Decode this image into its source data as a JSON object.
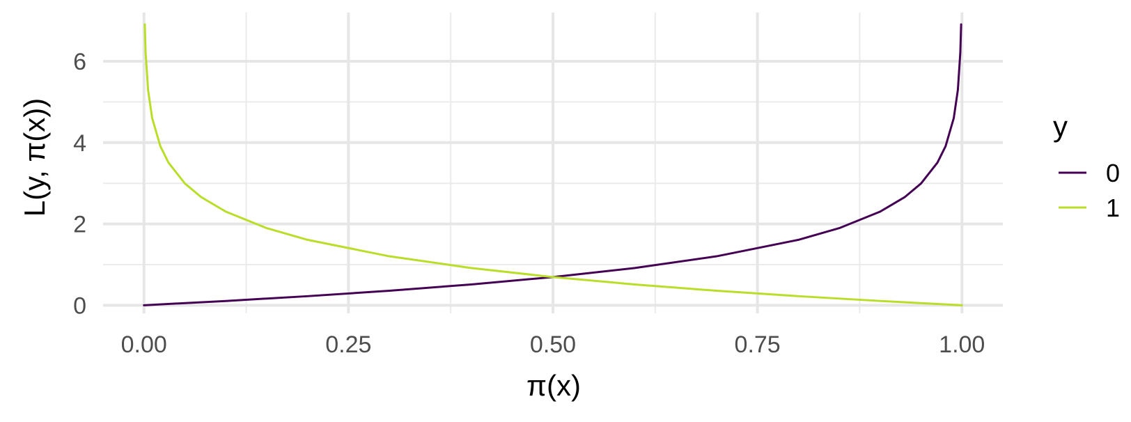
{
  "chart_data": {
    "type": "line",
    "title": "",
    "xlabel": "π(x)",
    "ylabel": "L(y, π(x))",
    "xlim": [
      -0.05,
      1.05
    ],
    "ylim": [
      -0.2,
      7.2
    ],
    "x_ticks": [
      0,
      0.25,
      0.5,
      0.75,
      1
    ],
    "x_tick_labels": [
      "0.00",
      "0.25",
      "0.50",
      "0.75",
      "1.00"
    ],
    "y_ticks": [
      0,
      2,
      4,
      6
    ],
    "y_tick_labels": [
      "0",
      "2",
      "4",
      "6"
    ],
    "grid": true,
    "legend": {
      "title": "y",
      "placement": "right"
    },
    "series": [
      {
        "name": "0",
        "color": "#440154",
        "x": [
          0,
          0.1,
          0.2,
          0.3,
          0.4,
          0.5,
          0.6,
          0.7,
          0.8,
          0.85,
          0.9,
          0.93,
          0.95,
          0.97,
          0.98,
          0.99,
          0.995,
          0.998,
          0.999
        ],
        "values": [
          0,
          0.105,
          0.223,
          0.357,
          0.511,
          0.693,
          0.916,
          1.204,
          1.609,
          1.897,
          2.303,
          2.659,
          2.996,
          3.507,
          3.912,
          4.605,
          5.298,
          6.215,
          6.908
        ]
      },
      {
        "name": "1",
        "color": "#B8DE29",
        "x": [
          0.001,
          0.002,
          0.005,
          0.01,
          0.02,
          0.03,
          0.05,
          0.07,
          0.1,
          0.15,
          0.2,
          0.3,
          0.4,
          0.5,
          0.6,
          0.7,
          0.8,
          0.9,
          1
        ],
        "values": [
          6.908,
          6.215,
          5.298,
          4.605,
          3.912,
          3.507,
          2.996,
          2.659,
          2.303,
          1.897,
          1.609,
          1.204,
          0.916,
          0.693,
          0.511,
          0.357,
          0.223,
          0.105,
          0
        ]
      }
    ]
  }
}
